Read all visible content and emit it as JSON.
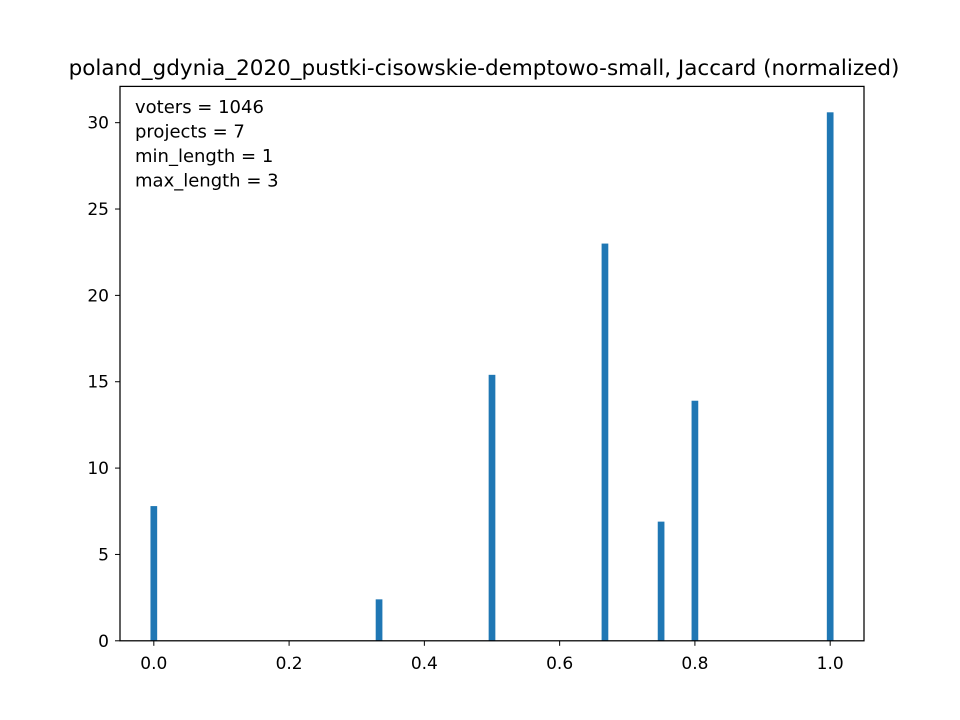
{
  "chart_data": {
    "type": "bar",
    "title": "poland_gdynia_2020_pustki-cisowskie-demptowo-small, Jaccard (normalized)",
    "xlabel": "",
    "ylabel": "",
    "annotation_lines": [
      "voters = 1046",
      "projects = 7",
      "min_length = 1",
      "max_length = 3"
    ],
    "bars": [
      {
        "x": 0.0,
        "value": 7.8
      },
      {
        "x": 0.333,
        "value": 2.4
      },
      {
        "x": 0.5,
        "value": 15.4
      },
      {
        "x": 0.667,
        "value": 23.0
      },
      {
        "x": 0.75,
        "value": 6.9
      },
      {
        "x": 0.8,
        "value": 13.9
      },
      {
        "x": 1.0,
        "value": 30.6
      }
    ],
    "xlim": [
      -0.05,
      1.05
    ],
    "ylim": [
      0,
      32.1
    ],
    "xticks": [
      0.0,
      0.2,
      0.4,
      0.6,
      0.8,
      1.0
    ],
    "xtick_labels": [
      "0.0",
      "0.2",
      "0.4",
      "0.6",
      "0.8",
      "1.0"
    ],
    "yticks": [
      0,
      5,
      10,
      15,
      20,
      25,
      30
    ],
    "ytick_labels": [
      "0",
      "5",
      "10",
      "15",
      "20",
      "25",
      "30"
    ],
    "grid": false,
    "colors": {
      "bar": "#1f77b4",
      "axes": "#000000",
      "background": "#ffffff"
    }
  }
}
